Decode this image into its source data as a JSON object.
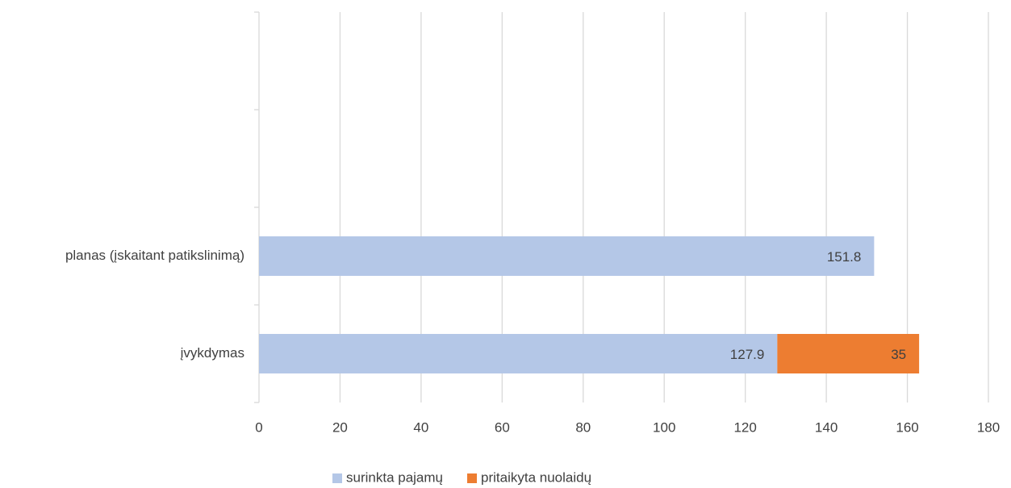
{
  "chart_data": {
    "type": "stacked_barh",
    "categories": [
      "įvykdymas",
      "planas (įskaitant patikslinimą)",
      null,
      null
    ],
    "series": [
      {
        "name": "surinkta pajamų",
        "color": "#b4c7e7",
        "values": [
          127.9,
          151.8,
          null,
          null
        ]
      },
      {
        "name": "pritaikyta nuolaidų",
        "color": "#ed7d31",
        "values": [
          35,
          null,
          null,
          null
        ]
      }
    ],
    "xlim": [
      0,
      180
    ],
    "xticks": [
      0,
      20,
      40,
      60,
      80,
      100,
      120,
      140,
      160,
      180
    ],
    "grid": true,
    "legend": "bottom"
  }
}
